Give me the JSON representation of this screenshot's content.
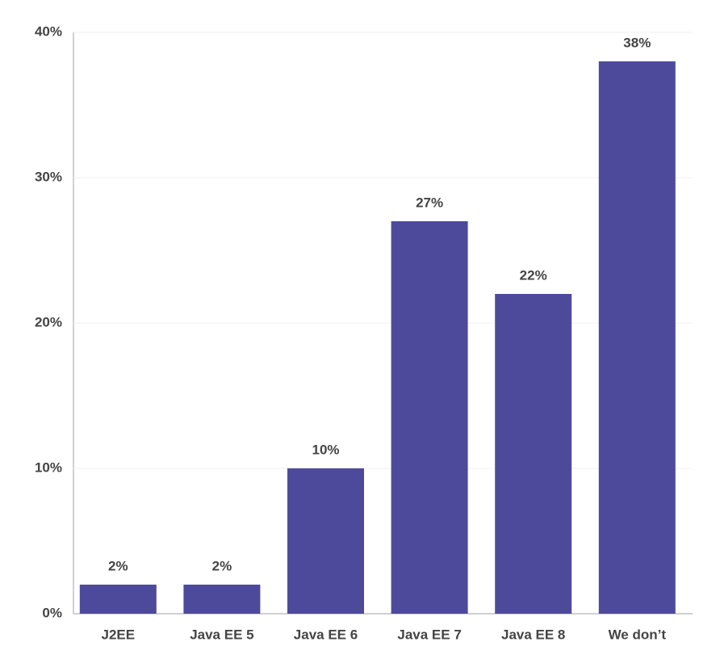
{
  "chart_data": {
    "type": "bar",
    "categories": [
      "J2EE",
      "Java EE 5",
      "Java EE 6",
      "Java EE 7",
      "Java EE 8",
      "We don’t"
    ],
    "values": [
      2,
      2,
      10,
      27,
      22,
      38
    ],
    "value_labels": [
      "2%",
      "2%",
      "10%",
      "27%",
      "22%",
      "38%"
    ],
    "color": "#4e4a9b",
    "ylim": [
      0,
      40
    ],
    "yticks": [
      {
        "value": 0,
        "label": "0%"
      },
      {
        "value": 10,
        "label": "10%"
      },
      {
        "value": 20,
        "label": "20%"
      },
      {
        "value": 30,
        "label": "30%"
      },
      {
        "value": 40,
        "label": "40%"
      }
    ],
    "grid": true
  }
}
